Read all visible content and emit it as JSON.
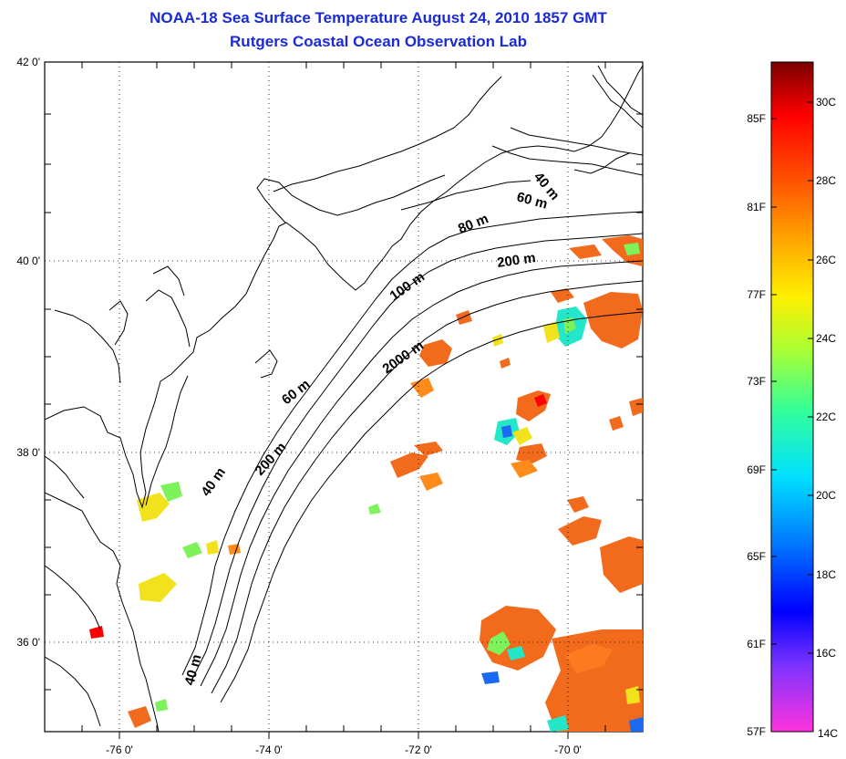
{
  "title": {
    "line1": "NOAA-18 Sea Surface Temperature August 24, 2010 1857 GMT",
    "line2": "Rutgers Coastal Ocean Observation Lab"
  },
  "axes": {
    "lat_labels": [
      "42 0'",
      "40 0'",
      "38 0'",
      "36 0'"
    ],
    "lon_labels": [
      "-76 0'",
      "-74 0'",
      "-72 0'",
      "-70 0'"
    ]
  },
  "isobaths": [
    "40 m",
    "60 m",
    "80 m",
    "200 m",
    "100 m",
    "2000 m",
    "60 m",
    "200 m",
    "40 m",
    "40 m"
  ],
  "colorbar": {
    "fahrenheit": [
      "85F",
      "81F",
      "77F",
      "73F",
      "69F",
      "65F",
      "61F",
      "57F"
    ],
    "celsius": [
      "30C",
      "28C",
      "26C",
      "24C",
      "22C",
      "20C",
      "18C",
      "16C",
      "14C"
    ],
    "gradient": [
      "#ff33dd",
      "#7a33ff",
      "#0000ff",
      "#0077ff",
      "#00e0ff",
      "#33ff99",
      "#aaff33",
      "#ffee00",
      "#ffaa00",
      "#ff5500",
      "#ff0000",
      "#7a0000"
    ]
  },
  "colors": {
    "title": "#1a2ad6",
    "sst_orange": "#f26a1b",
    "sst_warm": "#ff8c1a",
    "sst_yellow": "#f2e21b",
    "sst_green": "#7ef25a",
    "sst_cyan": "#24e6c8",
    "sst_blue": "#1a6af2"
  }
}
